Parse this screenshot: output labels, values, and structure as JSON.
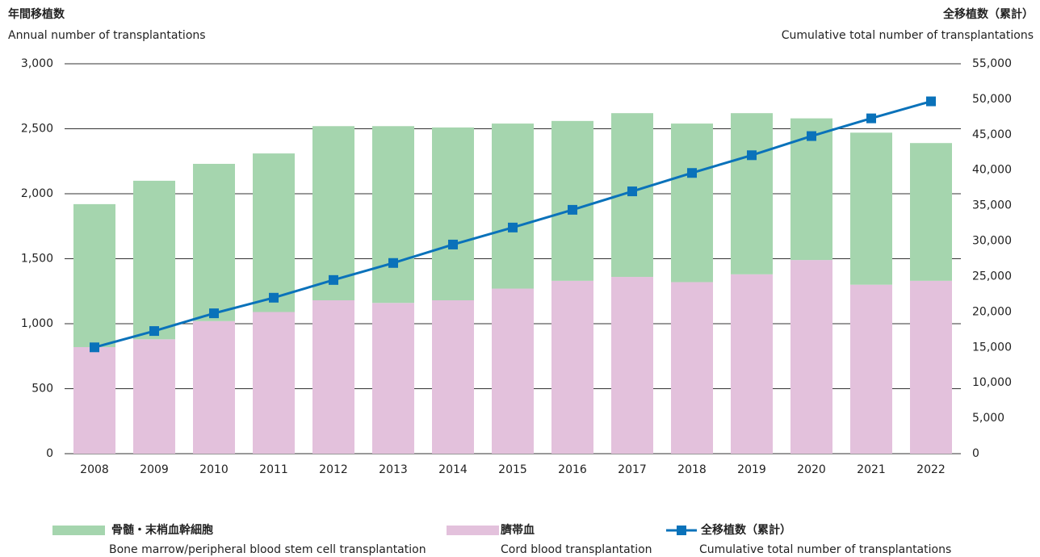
{
  "chart_data": {
    "type": "bar_line",
    "y_title": "年間移植数",
    "y_title_en": "Annual number of transplantations",
    "y2_title": "全移植数（累計）",
    "y2_title_en": "Cumulative total number of transplantations",
    "categories": [
      "2008",
      "2009",
      "2010",
      "2011",
      "2012",
      "2013",
      "2014",
      "2015",
      "2016",
      "2017",
      "2018",
      "2019",
      "2020",
      "2021",
      "2022"
    ],
    "series": [
      {
        "name": "骨髄・末梢血幹細胞",
        "name_en": "Bone marrow/peripheral blood stem cell transplantation",
        "color": "#a5d5ae",
        "stack": true,
        "values": [
          1100,
          1220,
          1210,
          1220,
          1340,
          1360,
          1330,
          1270,
          1230,
          1260,
          1220,
          1240,
          1090,
          1170,
          1060
        ]
      },
      {
        "name": "臍帯血",
        "name_en": "Cord blood transplantation",
        "color": "#e3c1dc",
        "stack": true,
        "values": [
          820,
          880,
          1020,
          1090,
          1180,
          1160,
          1180,
          1270,
          1330,
          1360,
          1320,
          1380,
          1490,
          1300,
          1330
        ]
      },
      {
        "name": "全移植数（累計）",
        "name_en": "Cumulative total number of transplantations",
        "color": "#0a72ba",
        "axis": "y2",
        "values": [
          15000,
          17300,
          19800,
          22000,
          24500,
          26900,
          29500,
          31900,
          34400,
          37000,
          39600,
          42100,
          44800,
          47300,
          49700
        ]
      }
    ],
    "ylim": [
      0,
      3000
    ],
    "yticks": [
      0,
      500,
      {
        "value": 1000,
        "label": "1,000"
      },
      {
        "value": 1500,
        "label": "1,500"
      },
      {
        "value": 2000,
        "label": "2,000"
      },
      {
        "value": 2500,
        "label": "2,500"
      },
      {
        "value": 3000,
        "label": "3,000"
      }
    ],
    "y2lim": [
      0,
      55000
    ],
    "y2ticks": [
      0,
      {
        "value": 5000,
        "label": "5,000"
      },
      {
        "value": 10000,
        "label": "10,000"
      },
      {
        "value": 15000,
        "label": "15,000"
      },
      {
        "value": 20000,
        "label": "20,000"
      },
      {
        "value": 25000,
        "label": "25,000"
      },
      {
        "value": 30000,
        "label": "30,000"
      },
      {
        "value": 35000,
        "label": "35,000"
      },
      {
        "value": 40000,
        "label": "40,000"
      },
      {
        "value": 45000,
        "label": "45,000"
      },
      {
        "value": 50000,
        "label": "50,000"
      },
      {
        "value": 55000,
        "label": "55,000"
      }
    ],
    "grid": true
  }
}
